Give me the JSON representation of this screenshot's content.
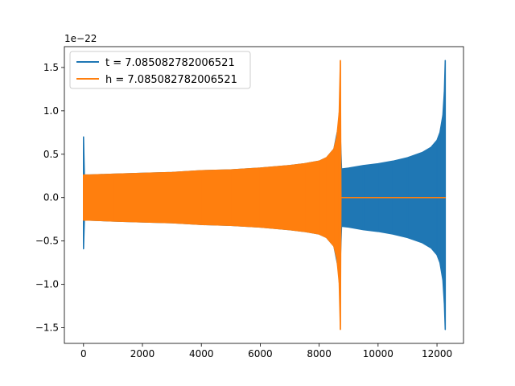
{
  "chart_data": {
    "type": "line",
    "title": "",
    "xlabel": "",
    "ylabel": "",
    "y_scale_label": "1e−22",
    "xlim": [
      -650,
      12900
    ],
    "ylim": [
      -1.68,
      1.74
    ],
    "x_ticks": [
      0,
      2000,
      4000,
      6000,
      8000,
      10000,
      12000
    ],
    "x_tick_labels": [
      "0",
      "2000",
      "4000",
      "6000",
      "8000",
      "10000",
      "12000"
    ],
    "y_ticks": [
      -1.5,
      -1.0,
      -0.5,
      0.0,
      0.5,
      1.0,
      1.5
    ],
    "y_tick_labels": [
      "−1.5",
      "−1.0",
      "−0.5",
      "0.0",
      "0.5",
      "1.0",
      "1.5"
    ],
    "grid": false,
    "legend_position": "top-left",
    "series": [
      {
        "name": "t = 7.085082782006521",
        "color": "#1f77b4",
        "x": [
          0,
          30,
          60,
          200,
          1000,
          2000,
          3000,
          4000,
          5000,
          6000,
          7000,
          7500,
          8000,
          8250,
          8500,
          8700,
          8760,
          9000,
          9500,
          10000,
          10500,
          11000,
          11500,
          11800,
          12000,
          12100,
          12200,
          12250,
          12280
        ],
        "envelope": [
          0.7,
          0.26,
          0.26,
          0.26,
          0.27,
          0.28,
          0.29,
          0.31,
          0.32,
          0.34,
          0.37,
          0.39,
          0.42,
          0.46,
          0.56,
          0.9,
          0.33,
          0.34,
          0.37,
          0.39,
          0.42,
          0.46,
          0.52,
          0.58,
          0.66,
          0.75,
          0.95,
          1.22,
          1.58
        ],
        "min_extreme": [
          -0.59,
          -0.26,
          -0.26,
          -0.26,
          -0.27,
          -0.28,
          -0.29,
          -0.31,
          -0.32,
          -0.34,
          -0.37,
          -0.39,
          -0.42,
          -0.46,
          -0.56,
          -0.9,
          -0.33,
          -0.34,
          -0.37,
          -0.39,
          -0.42,
          -0.46,
          -0.52,
          -0.58,
          -0.66,
          -0.75,
          -0.95,
          -1.22,
          -1.52
        ]
      },
      {
        "name": "h = 7.085082782006521",
        "color": "#ff7f0e",
        "x": [
          0,
          30,
          60,
          200,
          1000,
          2000,
          3000,
          4000,
          5000,
          6000,
          7000,
          7500,
          8000,
          8250,
          8500,
          8600,
          8680,
          8720,
          8740,
          12280
        ],
        "envelope": [
          0.26,
          0.26,
          0.26,
          0.26,
          0.27,
          0.28,
          0.29,
          0.31,
          0.32,
          0.34,
          0.37,
          0.39,
          0.42,
          0.46,
          0.56,
          0.7,
          0.98,
          1.58,
          0.0,
          0.0
        ],
        "min_extreme": [
          -0.26,
          -0.26,
          -0.26,
          -0.26,
          -0.27,
          -0.28,
          -0.29,
          -0.31,
          -0.32,
          -0.34,
          -0.37,
          -0.39,
          -0.42,
          -0.46,
          -0.56,
          -0.7,
          -0.98,
          -1.52,
          0.0,
          0.0
        ]
      }
    ]
  }
}
